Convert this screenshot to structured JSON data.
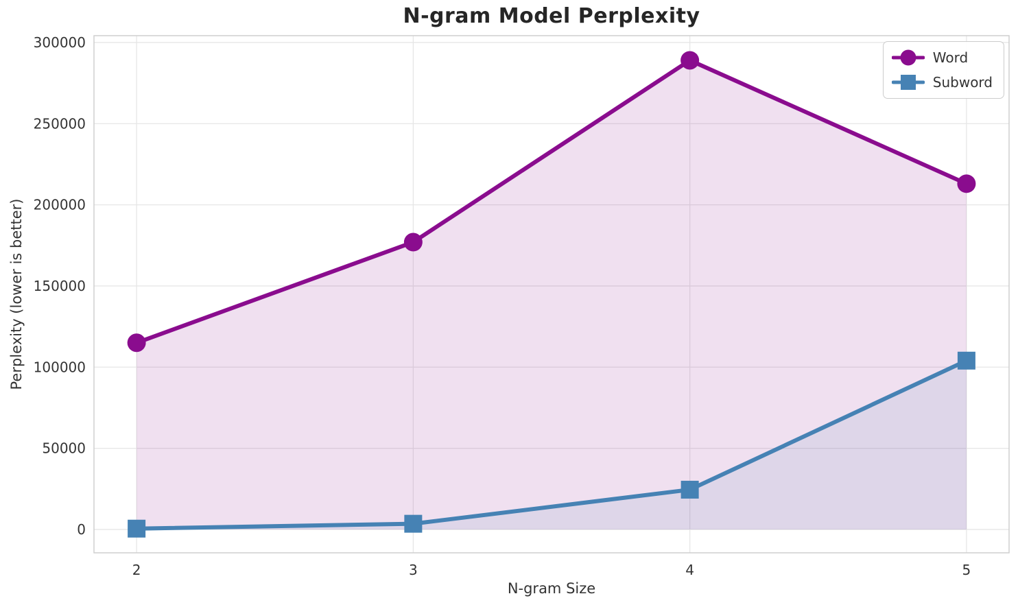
{
  "chart_data": {
    "type": "line",
    "title": "N-gram Model Perplexity",
    "xlabel": "N-gram Size",
    "ylabel": "Perplexity (lower is better)",
    "x": [
      2,
      3,
      4,
      5
    ],
    "xtick_labels": [
      "2",
      "3",
      "4",
      "5"
    ],
    "yticks": [
      0,
      50000,
      100000,
      150000,
      200000,
      250000,
      300000
    ],
    "ytick_labels": [
      "0",
      "50000",
      "100000",
      "150000",
      "200000",
      "250000",
      "300000"
    ],
    "xlim": [
      1.846,
      5.154
    ],
    "ylim": [
      -14400,
      304200
    ],
    "grid": true,
    "grid_color": "#e6e6e6",
    "spine_color": "#cfcfcf",
    "tick_color": "#333333",
    "legend_position": "upper right",
    "series": [
      {
        "name": "Word",
        "marker": "circle",
        "color": "#8A0C8E",
        "line_width": 6,
        "fill_alpha": 0.13,
        "values": [
          115000,
          177000,
          289000,
          213000
        ]
      },
      {
        "name": "Subword",
        "marker": "square",
        "color": "#4682B4",
        "line_width": 6,
        "fill_alpha": 0.1,
        "values": [
          500,
          3500,
          24500,
          104000
        ]
      }
    ]
  }
}
